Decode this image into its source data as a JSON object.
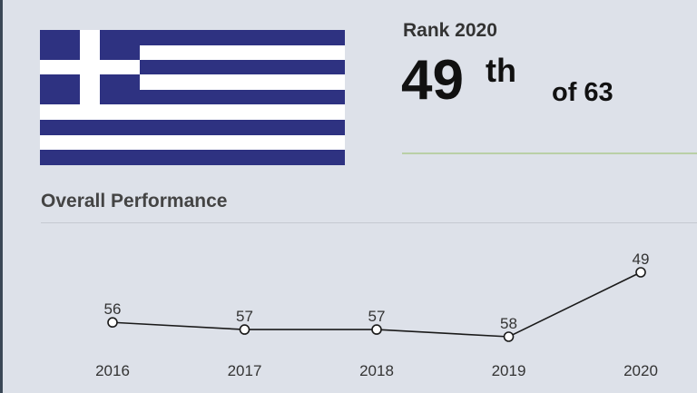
{
  "colors": {
    "flag_blue": "#2e3281",
    "flag_white": "#ffffff",
    "background": "#dde1e9",
    "rank_divider": "#b9cfa6"
  },
  "rank": {
    "title": "Rank 2020",
    "position": "49",
    "suffix": "th",
    "of_total": "of 63"
  },
  "section": {
    "title": "Overall Performance"
  },
  "chart_data": {
    "type": "line",
    "categories": [
      "2016",
      "2017",
      "2018",
      "2019",
      "2020"
    ],
    "values": [
      56,
      57,
      57,
      58,
      49
    ],
    "data_labels": [
      "56",
      "57",
      "57",
      "58",
      "49"
    ],
    "title": "",
    "xlabel": "",
    "ylabel": "",
    "grid": false,
    "y_axis": "inverted (lower rank number is drawn higher)"
  }
}
